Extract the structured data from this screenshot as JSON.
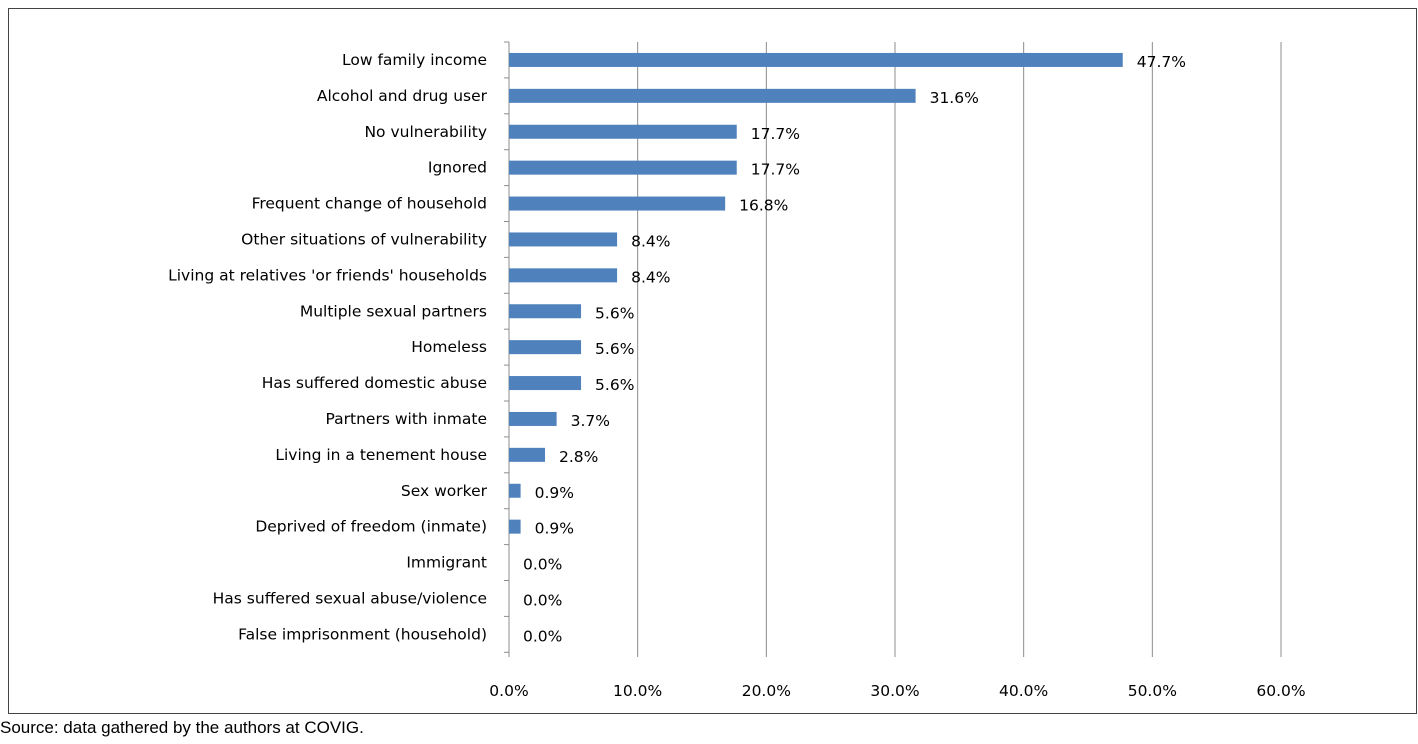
{
  "chart_data": {
    "type": "bar",
    "orientation": "horizontal",
    "categories": [
      "Low family income",
      "Alcohol and drug user",
      "No vulnerability",
      "Ignored",
      "Frequent change of household",
      "Other situations of vulnerability",
      "Living at relatives 'or friends' households",
      "Multiple sexual partners",
      "Homeless",
      "Has suffered domestic abuse",
      "Partners with inmate",
      "Living in a tenement house",
      "Sex worker",
      "Deprived of freedom (inmate)",
      "Immigrant",
      "Has suffered sexual abuse/violence",
      "False imprisonment (household)"
    ],
    "values": [
      47.7,
      31.6,
      17.7,
      17.7,
      16.8,
      8.4,
      8.4,
      5.6,
      5.6,
      5.6,
      3.7,
      2.8,
      0.9,
      0.9,
      0.0,
      0.0,
      0.0
    ],
    "data_labels": [
      "47.7%",
      "31.6%",
      "17.7%",
      "17.7%",
      "16.8%",
      "8.4%",
      "8.4%",
      "5.6%",
      "5.6%",
      "5.6%",
      "3.7%",
      "2.8%",
      "0.9%",
      "0.9%",
      "0.0%",
      "0.0%",
      "0.0%"
    ],
    "xticks": [
      "0.0%",
      "10.0%",
      "20.0%",
      "30.0%",
      "40.0%",
      "50.0%",
      "60.0%"
    ],
    "xlim": [
      0,
      60
    ],
    "grid": "vertical",
    "legend": "none",
    "bar_color": "#4f81bd",
    "grid_color": "#8c8c8c",
    "title": "",
    "xlabel": "",
    "ylabel": ""
  },
  "source_note": "Source: data gathered by the authors at COVIG."
}
